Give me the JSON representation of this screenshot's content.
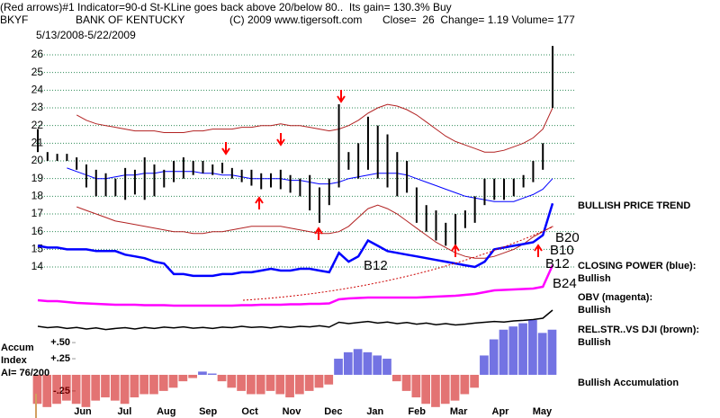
{
  "chart_data": {
    "type": "stock",
    "title": "(Red arrows)#1 Indicator=90-d St-KLine goes back above 20/below 80..  Its gain= 130.3% Buy",
    "symbol": "BKYF",
    "company": "BANK OF KENTUCKY",
    "copyright": "(C) 2009 www.tigersoft.com",
    "quote": "Close=  26  Change= 1.19 Volume= 177",
    "subtitle": "5/13/2008-5/22/2009",
    "categories": [
      "Jun",
      "Jul",
      "Aug",
      "Sep",
      "Oct",
      "Nov",
      "Dec",
      "Jan",
      "Feb",
      "Mar",
      "Apr",
      "May"
    ],
    "ylim": [
      13,
      27
    ],
    "yticks": [
      14,
      15,
      16,
      17,
      18,
      19,
      20,
      21,
      22,
      23,
      24,
      25,
      26
    ],
    "grid": true,
    "grid_color": "#2e8b57",
    "price": {
      "color": "#000000",
      "high": [
        21.8,
        20.5,
        20.4,
        20.4,
        20.2,
        19.8,
        19.5,
        19.3,
        19.0,
        19.6,
        19.5,
        20.2,
        19.8,
        19.5,
        20.0,
        20.2,
        20.0,
        20.0,
        19.8,
        19.9,
        19.6,
        19.5,
        19.5,
        19.3,
        19.3,
        19.5,
        19.2,
        19.0,
        19.2,
        18.5,
        19.0,
        23.2,
        20.5,
        21.0,
        22.5,
        22.0,
        21.5,
        20.5,
        20.0,
        18.5,
        17.5,
        17.2,
        16.5,
        17.0,
        17.2,
        18.0,
        19.0,
        19.0,
        19.0,
        19.0,
        19.2,
        20.0,
        21.0,
        26.5
      ],
      "low": [
        20.5,
        20.0,
        20.0,
        20.0,
        19.5,
        18.5,
        18.0,
        18.0,
        18.0,
        17.8,
        18.1,
        17.8,
        18.0,
        18.5,
        18.8,
        19.0,
        19.2,
        19.3,
        19.2,
        19.3,
        19.0,
        18.8,
        18.6,
        18.4,
        18.5,
        18.4,
        18.2,
        18.0,
        17.2,
        16.5,
        17.5,
        18.5,
        19.5,
        19.0,
        19.5,
        19.0,
        18.5,
        18.0,
        18.2,
        16.5,
        16.0,
        15.5,
        15.2,
        15.0,
        16.2,
        16.5,
        17.5,
        17.8,
        17.8,
        18.0,
        18.5,
        18.8,
        19.5,
        23.0
      ]
    },
    "moving_average": {
      "color": "#0000ff",
      "values": [
        null,
        null,
        null,
        19.6,
        19.4,
        19.2,
        19.0,
        19.0,
        19.1,
        19.2,
        19.2,
        19.3,
        19.3,
        19.4,
        19.4,
        19.4,
        19.4,
        19.3,
        19.3,
        19.2,
        19.2,
        19.1,
        19.0,
        19.0,
        19.0,
        19.0,
        18.9,
        18.9,
        18.8,
        18.7,
        18.7,
        18.8,
        19.0,
        19.1,
        19.2,
        19.3,
        19.3,
        19.3,
        19.2,
        19.0,
        18.8,
        18.6,
        18.4,
        18.2,
        18.0,
        17.9,
        17.8,
        17.7,
        17.7,
        17.7,
        17.9,
        18.1,
        18.4,
        19.0
      ]
    },
    "upper_band": {
      "color": "#b22222",
      "values": [
        null,
        null,
        null,
        null,
        22.6,
        22.3,
        22.1,
        22.0,
        21.9,
        21.8,
        21.7,
        21.7,
        21.7,
        21.6,
        21.6,
        21.6,
        21.7,
        21.7,
        21.8,
        21.8,
        21.8,
        21.9,
        21.9,
        22.0,
        22.0,
        22.1,
        22.0,
        22.0,
        21.9,
        21.8,
        21.7,
        21.8,
        22.0,
        22.3,
        22.7,
        23.0,
        23.2,
        23.1,
        22.9,
        22.6,
        22.2,
        21.8,
        21.4,
        21.1,
        20.9,
        20.7,
        20.5,
        20.5,
        20.6,
        20.8,
        21.0,
        21.3,
        21.8,
        23.0
      ]
    },
    "lower_band": {
      "color": "#b22222",
      "values": [
        null,
        null,
        null,
        null,
        17.4,
        17.2,
        17.0,
        16.8,
        16.6,
        16.5,
        16.4,
        16.3,
        16.2,
        16.1,
        16.0,
        16.0,
        15.9,
        15.9,
        16.0,
        16.0,
        16.1,
        16.2,
        16.3,
        16.3,
        16.3,
        16.3,
        16.2,
        16.1,
        16.0,
        15.9,
        15.9,
        16.0,
        16.3,
        16.8,
        17.3,
        17.5,
        17.3,
        17.0,
        16.6,
        16.2,
        15.8,
        15.4,
        15.1,
        14.8,
        14.6,
        14.5,
        14.5,
        14.6,
        14.8,
        15.0,
        15.3,
        15.7,
        16.0,
        16.3
      ]
    },
    "closing_power": {
      "color": "#0000ff",
      "values": [
        15.2,
        15.1,
        15.1,
        15.0,
        15.0,
        15.0,
        14.9,
        14.9,
        14.9,
        14.7,
        14.6,
        14.5,
        14.3,
        14.2,
        13.6,
        13.6,
        13.5,
        13.5,
        13.5,
        13.6,
        13.6,
        13.7,
        13.7,
        13.8,
        13.9,
        13.8,
        13.8,
        13.9,
        13.9,
        13.8,
        13.7,
        14.8,
        14.3,
        14.6,
        15.5,
        15.2,
        14.9,
        14.8,
        14.7,
        14.6,
        14.5,
        14.4,
        14.3,
        14.2,
        14.1,
        14.0,
        14.3,
        15.0,
        15.1,
        15.2,
        15.3,
        15.4,
        15.8,
        17.6
      ]
    },
    "obv": {
      "color": "#ff00ff",
      "ylim": [
        0,
        100
      ],
      "values": [
        22,
        20,
        20,
        18,
        16,
        15,
        14,
        13,
        12,
        12,
        12,
        11,
        11,
        11,
        10,
        10,
        10,
        10,
        10,
        10,
        10,
        11,
        11,
        12,
        12,
        12,
        13,
        13,
        14,
        14,
        15,
        24,
        26,
        27,
        28,
        28,
        28,
        28,
        28,
        28,
        29,
        30,
        31,
        32,
        34,
        36,
        40,
        44,
        45,
        46,
        47,
        48,
        52,
        100
      ]
    },
    "rel_str": {
      "color": "#000000",
      "ylim": [
        0,
        100
      ],
      "values": [
        30,
        25,
        28,
        22,
        26,
        20,
        24,
        18,
        22,
        25,
        20,
        26,
        22,
        27,
        24,
        28,
        23,
        26,
        22,
        27,
        25,
        30,
        26,
        28,
        24,
        29,
        26,
        30,
        28,
        32,
        27,
        45,
        40,
        44,
        48,
        42,
        46,
        40,
        44,
        38,
        42,
        36,
        40,
        35,
        38,
        42,
        45,
        48,
        46,
        50,
        52,
        55,
        60,
        90
      ]
    },
    "accum": {
      "pos_color": "#0000cc",
      "neg_color": "#cc0000",
      "ylim": [
        -0.6,
        0.85
      ],
      "yticks": [
        {
          "value": 0.5,
          "label": "+.50"
        },
        {
          "value": 0.25,
          "label": "+.25"
        },
        {
          "value": -0.25,
          "label": "-.25"
        }
      ],
      "label_lines": [
        "Accum",
        "Index",
        "AI= 76/200"
      ],
      "values": [
        -0.45,
        -0.5,
        -0.45,
        -0.4,
        -0.45,
        -0.5,
        -0.4,
        -0.35,
        -0.4,
        -0.45,
        -0.35,
        -0.3,
        -0.3,
        -0.25,
        -0.2,
        -0.1,
        -0.05,
        0.05,
        0.02,
        -0.1,
        -0.2,
        -0.25,
        -0.3,
        -0.3,
        -0.25,
        -0.3,
        -0.35,
        -0.3,
        -0.25,
        -0.2,
        -0.15,
        0.25,
        0.35,
        0.4,
        0.35,
        0.3,
        0.25,
        -0.1,
        -0.25,
        -0.35,
        -0.45,
        -0.5,
        -0.45,
        -0.4,
        -0.3,
        -0.2,
        0.3,
        0.55,
        0.7,
        0.75,
        0.8,
        0.85,
        0.65,
        0.7
      ]
    },
    "indicator_labels": [
      "BULLISH PRICE TREND",
      "CLOSING POWER (blue):",
      "Bullish",
      "OBV (magenta):",
      "Bullish",
      "REL.STR..VS DJI (brown):",
      "Bullish",
      "Bullish Accumulation"
    ],
    "annotations": [
      "B12",
      "B20",
      "B10",
      "B12",
      "B24"
    ]
  }
}
